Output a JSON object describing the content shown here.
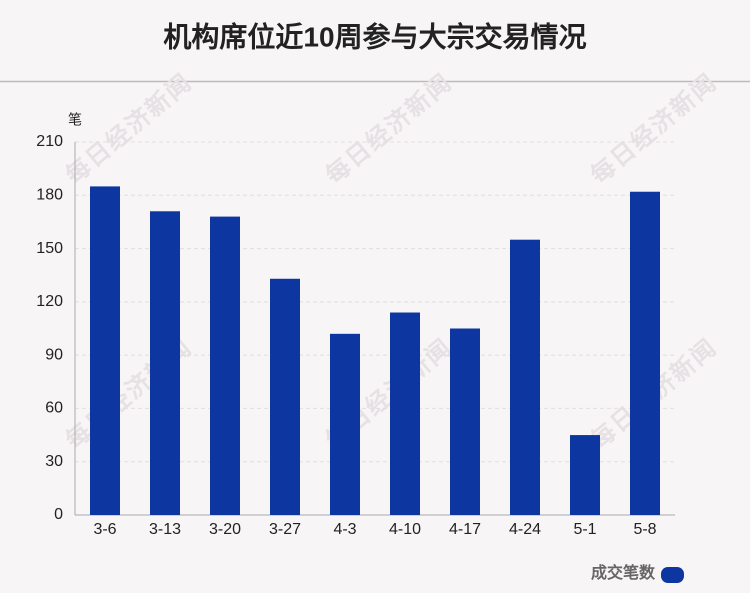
{
  "chart_data": {
    "type": "bar",
    "title": "机构席位近10周参与大宗交易情况",
    "y_label": "笔",
    "watermark": "每日经济新闻",
    "categories": [
      "3-6",
      "3-13",
      "3-20",
      "3-27",
      "4-3",
      "4-10",
      "4-17",
      "4-24",
      "5-1",
      "5-8"
    ],
    "series": [
      {
        "name": "成交笔数",
        "color": "#0d36a0",
        "values": [
          185,
          171,
          168,
          133,
          102,
          114,
          105,
          155,
          45,
          182
        ]
      }
    ],
    "ylim": [
      0,
      210
    ],
    "yticks": [
      0,
      30,
      60,
      90,
      120,
      150,
      180,
      210
    ],
    "grid": true,
    "legend": "bottom-right"
  }
}
